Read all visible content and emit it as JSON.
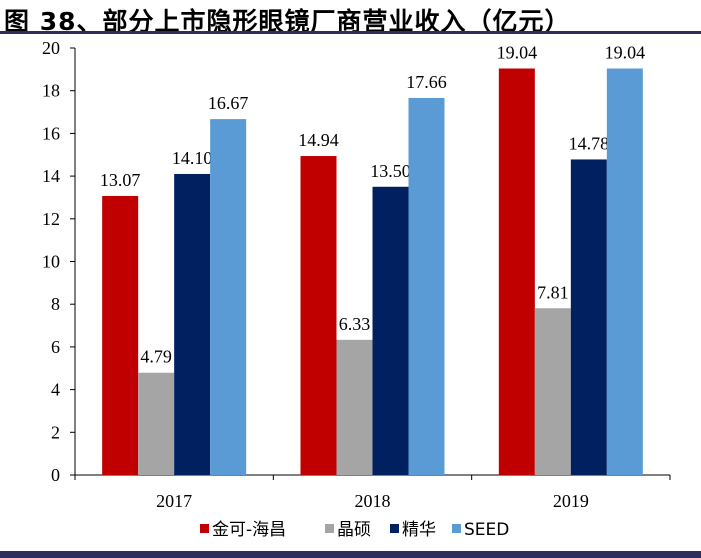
{
  "chart_data": {
    "type": "bar",
    "title": "图 38、部分上市隐形眼镜厂商营业收入（亿元）",
    "categories": [
      "2017",
      "2018",
      "2019"
    ],
    "series": [
      {
        "name": "金可-海昌",
        "color": "#C00000",
        "values": [
          13.07,
          14.94,
          19.04
        ]
      },
      {
        "name": "晶硕",
        "color": "#A5A5A5",
        "values": [
          4.79,
          6.33,
          7.81
        ]
      },
      {
        "name": "精华",
        "color": "#002060",
        "values": [
          14.1,
          13.5,
          14.78
        ]
      },
      {
        "name": "SEED",
        "color": "#5B9BD5",
        "values": [
          16.67,
          17.66,
          19.04
        ]
      }
    ],
    "ylim": [
      0,
      20
    ],
    "yticks": [
      0,
      2,
      4,
      6,
      8,
      10,
      12,
      14,
      16,
      18,
      20
    ],
    "xlabel": "",
    "ylabel": "",
    "grid": false,
    "legend": "bottom"
  }
}
